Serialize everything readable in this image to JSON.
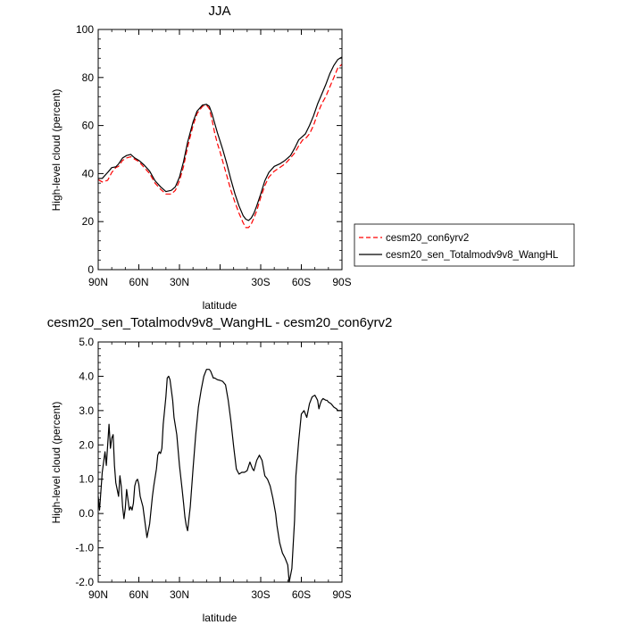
{
  "chart_data": [
    {
      "type": "line",
      "title": "JJA",
      "xlabel": "latitude",
      "ylabel": "High-level cloud (percent)",
      "xlim": [
        90,
        -90
      ],
      "ylim": [
        0,
        100
      ],
      "x_ticks": [
        90,
        60,
        30,
        0,
        -30,
        -60,
        -90
      ],
      "x_tick_labels": [
        "90N",
        "60N",
        "30N",
        "",
        "30S",
        "60S",
        "90S"
      ],
      "y_ticks": [
        0,
        20,
        40,
        60,
        80,
        100
      ],
      "y_tick_labels": [
        "0",
        "20",
        "40",
        "60",
        "80",
        "100"
      ],
      "grid": false,
      "legend_position": "right",
      "series": [
        {
          "name": "cesm20_con6yrv2",
          "color": "#ff0000",
          "dash": "dashed",
          "x": [
            90,
            87,
            83,
            80,
            77,
            75,
            72,
            69,
            66,
            63,
            60,
            56,
            52,
            48,
            44,
            40,
            36,
            33,
            30,
            27,
            24,
            20,
            17,
            13,
            10,
            8,
            6,
            4,
            2,
            0,
            -2,
            -5,
            -8,
            -11,
            -14,
            -17,
            -19,
            -21,
            -23,
            -25,
            -27,
            -30,
            -33,
            -36,
            -40,
            -44,
            -48,
            -52,
            -55,
            -58,
            -61,
            -63,
            -66,
            -69,
            -72,
            -75,
            -78,
            -81,
            -84,
            -87,
            -90
          ],
          "values": [
            37.5,
            36.5,
            37.2,
            40.5,
            42.5,
            43,
            45.5,
            46.5,
            47,
            46,
            45,
            42.5,
            40,
            36,
            33.5,
            31.5,
            31.5,
            33,
            37,
            43,
            51,
            60,
            65,
            68,
            68.5,
            67,
            62.5,
            57,
            52.5,
            49,
            45,
            39,
            33,
            28,
            23.5,
            19.5,
            17.5,
            17.5,
            19,
            21.5,
            24.5,
            30,
            35,
            38.5,
            41,
            42.5,
            44,
            46.5,
            48.5,
            51.5,
            54,
            54.5,
            56.5,
            60,
            65,
            69,
            72,
            76,
            80,
            84,
            85.5
          ]
        },
        {
          "name": "cesm20_sen_Totalmodv9v8_WangHL",
          "color": "#000000",
          "dash": "solid",
          "x": [
            90,
            87,
            83,
            80,
            77,
            75,
            72,
            69,
            66,
            63,
            60,
            56,
            52,
            48,
            44,
            40,
            36,
            33,
            30,
            27,
            24,
            20,
            17,
            13,
            10,
            8,
            6,
            4,
            2,
            0,
            -2,
            -5,
            -8,
            -11,
            -14,
            -17,
            -19,
            -21,
            -23,
            -25,
            -27,
            -30,
            -33,
            -36,
            -40,
            -44,
            -48,
            -52,
            -55,
            -58,
            -61,
            -63,
            -66,
            -69,
            -72,
            -75,
            -78,
            -81,
            -84,
            -87,
            -90
          ],
          "values": [
            38,
            38,
            40.5,
            42.5,
            42.8,
            44,
            46.5,
            47.5,
            48,
            46.5,
            45.5,
            43.5,
            41,
            37,
            34.5,
            32.5,
            33,
            34.5,
            38.5,
            45,
            53,
            61.5,
            66,
            68.5,
            68.8,
            68,
            65,
            61,
            57,
            53.5,
            50,
            44,
            37.5,
            31.5,
            26.5,
            22.5,
            21,
            20.5,
            21.5,
            23.5,
            26.5,
            31.5,
            37,
            40.5,
            43,
            44,
            45.5,
            47.5,
            50.5,
            54,
            55.5,
            56.5,
            60,
            64,
            69,
            73,
            77,
            81.5,
            85,
            87.5,
            88.5
          ]
        }
      ]
    },
    {
      "type": "line",
      "title": "cesm20_sen_Totalmodv9v8_WangHL - cesm20_con6yrv2",
      "xlabel": "latitude",
      "ylabel": "High-level cloud (percent)",
      "xlim": [
        90,
        -90
      ],
      "ylim": [
        -2,
        5
      ],
      "x_ticks": [
        90,
        60,
        30,
        0,
        -30,
        -60,
        -90
      ],
      "x_tick_labels": [
        "90N",
        "60N",
        "30N",
        "",
        "30S",
        "60S",
        "90S"
      ],
      "y_ticks": [
        -2,
        -1,
        0,
        1,
        2,
        3,
        4,
        5
      ],
      "y_tick_labels": [
        "-2.0",
        "-1.0",
        "0.0",
        "1.0",
        "2.0",
        "3.0",
        "4.0",
        "5.0"
      ],
      "grid": false,
      "series": [
        {
          "color": "#000000",
          "dash": "solid",
          "x": [
            90,
            89,
            87,
            85,
            84,
            82,
            81,
            80,
            79,
            78,
            77,
            75,
            74,
            73,
            72,
            71,
            70,
            69,
            67,
            66,
            65,
            64,
            63,
            62,
            61,
            60,
            59,
            57,
            55,
            54,
            52,
            50,
            49,
            47,
            46,
            45,
            44,
            43,
            42,
            40,
            39,
            38,
            37,
            35,
            34,
            32,
            30,
            28,
            27,
            26,
            25,
            24,
            22,
            20,
            18,
            16,
            14,
            12,
            10,
            8,
            7,
            6,
            5,
            4,
            2,
            0,
            -2,
            -4,
            -6,
            -8,
            -10,
            -12,
            -14,
            -16,
            -18,
            -20,
            -22,
            -24,
            -25,
            -27,
            -29,
            -31,
            -33,
            -35,
            -37,
            -39,
            -41,
            -42,
            -44,
            -46,
            -48,
            -50,
            -51,
            -53,
            -55,
            -56,
            -58,
            -60,
            -62,
            -64,
            -66,
            -68,
            -70,
            -72,
            -73,
            -74,
            -75,
            -76,
            -78,
            -79,
            -80,
            -82,
            -83,
            -84,
            -86,
            -87,
            -88,
            -89,
            -90
          ],
          "values": [
            0.5,
            0.1,
            1.2,
            1.8,
            1.4,
            2.6,
            1.9,
            2.2,
            2.3,
            1.4,
            0.9,
            0.5,
            1.1,
            0.8,
            0.2,
            -0.15,
            0.15,
            0.7,
            0.1,
            0.2,
            0.1,
            0.3,
            0.8,
            0.95,
            1.0,
            0.85,
            0.5,
            0.2,
            -0.4,
            -0.7,
            -0.3,
            0.5,
            0.8,
            1.3,
            1.7,
            1.8,
            1.75,
            1.9,
            2.6,
            3.4,
            3.95,
            4.0,
            3.9,
            3.3,
            2.8,
            2.3,
            1.4,
            0.7,
            0.3,
            -0.1,
            -0.35,
            -0.5,
            0.2,
            1.3,
            2.3,
            3.1,
            3.6,
            4.0,
            4.2,
            4.2,
            4.15,
            4.05,
            3.95,
            3.95,
            3.9,
            3.88,
            3.85,
            3.75,
            3.3,
            2.7,
            1.95,
            1.3,
            1.15,
            1.2,
            1.2,
            1.25,
            1.5,
            1.3,
            1.25,
            1.55,
            1.7,
            1.55,
            1.1,
            1.0,
            0.8,
            0.45,
            0.0,
            -0.35,
            -0.85,
            -1.15,
            -1.3,
            -1.5,
            -2.0,
            -1.6,
            -0.2,
            1.1,
            2.1,
            2.9,
            3.0,
            2.8,
            3.2,
            3.4,
            3.45,
            3.3,
            3.05,
            3.2,
            3.3,
            3.35,
            3.3,
            3.3,
            3.25,
            3.2,
            3.15,
            3.1,
            3.05,
            3.0,
            3.0,
            3.0,
            3.0
          ]
        }
      ]
    }
  ]
}
